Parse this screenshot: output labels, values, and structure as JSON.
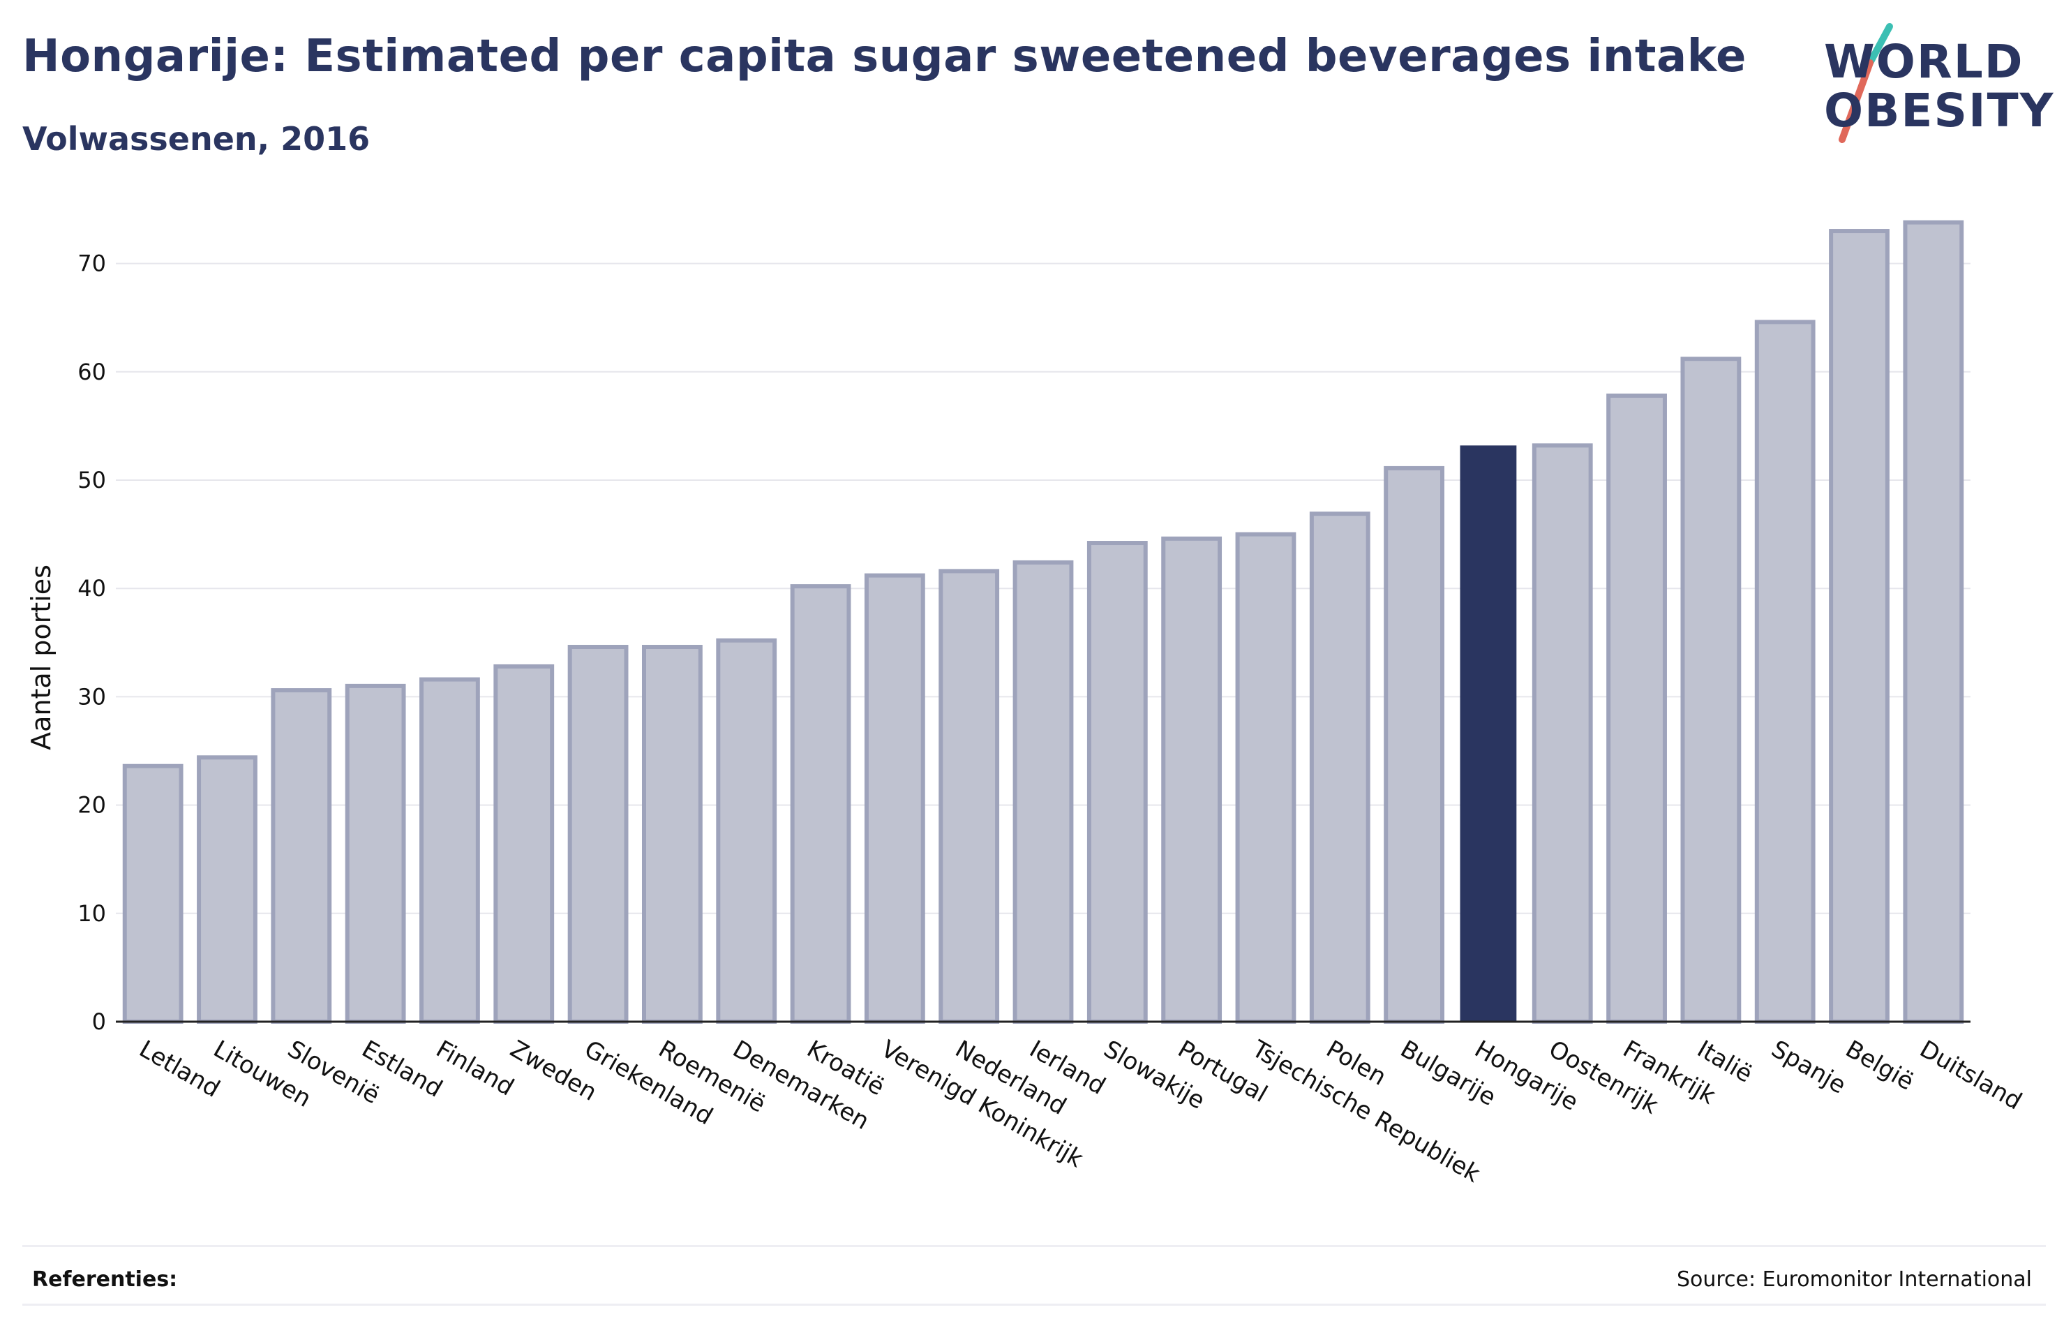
{
  "header": {
    "title": "Hongarije: Estimated per capita sugar sweetened beverages intake",
    "subtitle": "Volwassenen, 2016"
  },
  "logo": {
    "line1": "WORLD",
    "line2": "OBESITY",
    "colors": {
      "text": "#2a3560",
      "slash_top": "#3bbfb3",
      "slash_bottom": "#e0685a"
    }
  },
  "footer": {
    "references_label": "Referenties:",
    "source": "Source: Euromonitor International"
  },
  "colors": {
    "bar_default_fill": "#bfc2d0",
    "bar_default_stroke": "#9ea3bb",
    "bar_highlight_fill": "#2a3560",
    "grid": "#e6e6ec",
    "axis": "#222222",
    "text": "#111111"
  },
  "chart_data": {
    "type": "bar",
    "title": "Hongarije: Estimated per capita sugar sweetened beverages intake",
    "subtitle": "Volwassenen, 2016",
    "xlabel": "",
    "ylabel": "Aantal porties",
    "ylim": [
      0,
      75
    ],
    "yticks": [
      0,
      10,
      20,
      30,
      40,
      50,
      60,
      70
    ],
    "grid": true,
    "highlight": "Hongarije",
    "categories": [
      "Letland",
      "Litouwen",
      "Slovenië",
      "Estland",
      "Finland",
      "Zweden",
      "Griekenland",
      "Roemenië",
      "Denemarken",
      "Kroatië",
      "Verenigd Koninkrijk",
      "Nederland",
      "Ierland",
      "Slowakije",
      "Portugal",
      "Tsjechische Republiek",
      "Polen",
      "Bulgarije",
      "Hongarije",
      "Oostenrijk",
      "Frankrijk",
      "Italië",
      "Spanje",
      "België",
      "Duitsland"
    ],
    "values": [
      23.6,
      24.4,
      30.6,
      31.0,
      31.6,
      32.8,
      34.6,
      34.6,
      35.2,
      40.2,
      41.2,
      41.6,
      42.4,
      44.2,
      44.6,
      45.0,
      46.9,
      51.1,
      53.2,
      53.2,
      57.8,
      61.2,
      64.6,
      73.0,
      73.8
    ]
  }
}
